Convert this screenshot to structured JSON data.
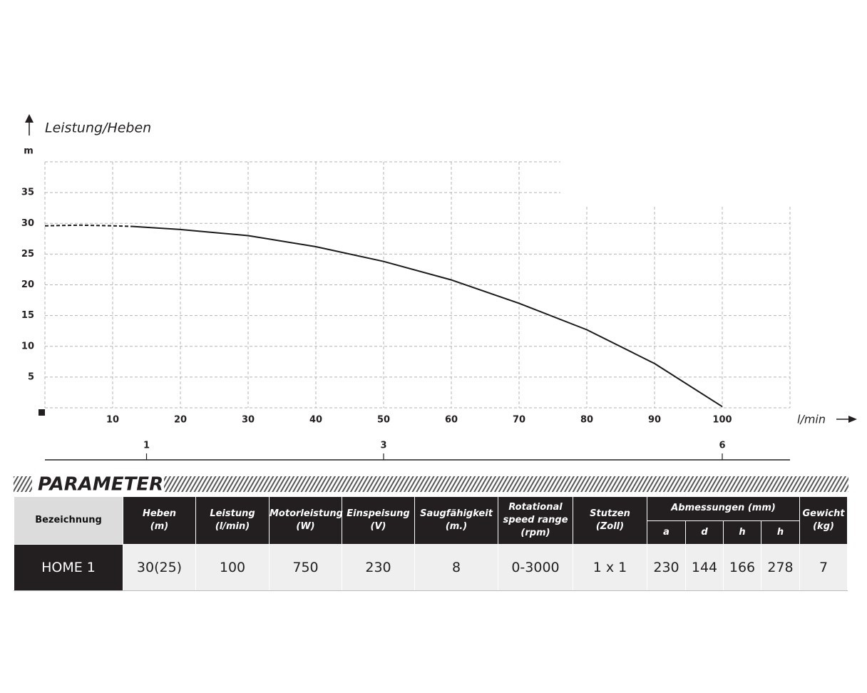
{
  "chart_data": {
    "type": "line",
    "title": "Leistung/Heben",
    "y_unit": "m",
    "x_unit": "l/min",
    "xlim": [
      0,
      110
    ],
    "ylim": [
      0,
      40
    ],
    "xticks": [
      10,
      20,
      30,
      40,
      50,
      60,
      70,
      80,
      90,
      100
    ],
    "yticks": [
      5,
      10,
      15,
      20,
      25,
      30,
      35
    ],
    "x2ticks": [
      {
        "value": 15,
        "label": "1"
      },
      {
        "value": 50,
        "label": "3"
      },
      {
        "value": 100,
        "label": "6"
      }
    ],
    "grid": true,
    "series": [
      {
        "line_style": "dashed",
        "color": "#1a1a1a",
        "x": [
          0,
          5,
          10,
          13
        ],
        "values": [
          29.6,
          29.7,
          29.6,
          29.5
        ]
      },
      {
        "line_style": "solid",
        "color": "#1a1a1a",
        "x": [
          13,
          20,
          30,
          40,
          50,
          60,
          70,
          80,
          90,
          100
        ],
        "values": [
          29.5,
          29.0,
          28.0,
          26.2,
          23.8,
          20.8,
          17.0,
          12.7,
          7.2,
          0.2
        ]
      }
    ]
  },
  "table": {
    "title": "PARAMETER",
    "headers": [
      "Bezeichnung",
      "Heben\n(m)",
      "Leistung\n(l/min)",
      "Motorleistung\n(W)",
      "Einspeisung\n(V)",
      "Saugfähigkeit\n(m.)",
      "Rotational\nspeed range\n(rpm)",
      "Stutzen\n(Zoll)"
    ],
    "group_header": "Abmessungen (mm)",
    "group_subheaders": [
      "a",
      "d",
      "h",
      "h"
    ],
    "last_header": "Gewicht\n(kg)",
    "rows": [
      [
        "HOME 1",
        "30(25)",
        "100",
        "750",
        "230",
        "8",
        "0-3000",
        "1 x 1",
        "230",
        "144",
        "166",
        "278",
        "7"
      ]
    ]
  }
}
